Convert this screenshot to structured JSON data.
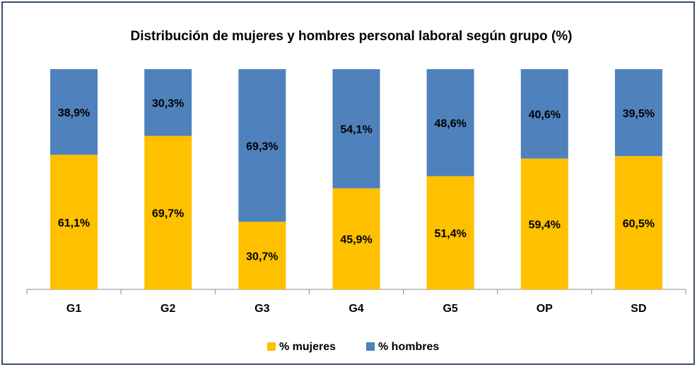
{
  "chart_data": {
    "type": "stacked_bar",
    "title": "Distribución de mujeres y hombres personal laboral según grupo (%)",
    "categories": [
      "G1",
      "G2",
      "G3",
      "G4",
      "G5",
      "OP",
      "SD"
    ],
    "series": [
      {
        "name": "% mujeres",
        "color": "#ffc000",
        "values": [
          61.1,
          69.7,
          30.7,
          45.9,
          51.4,
          59.4,
          60.5
        ],
        "value_labels": [
          "61,1%",
          "69,7%",
          "30,7%",
          "45,9%",
          "51,4%",
          "59,4%",
          "60,5%"
        ]
      },
      {
        "name": "% hombres",
        "color": "#4f81bd",
        "values": [
          38.9,
          30.3,
          69.3,
          54.1,
          48.6,
          40.6,
          39.5
        ],
        "value_labels": [
          "38,9%",
          "30,3%",
          "69,3%",
          "54,1%",
          "48,6%",
          "40,6%",
          "39,5%"
        ]
      }
    ],
    "ylim": [
      0,
      100
    ],
    "legend": "bottom"
  }
}
